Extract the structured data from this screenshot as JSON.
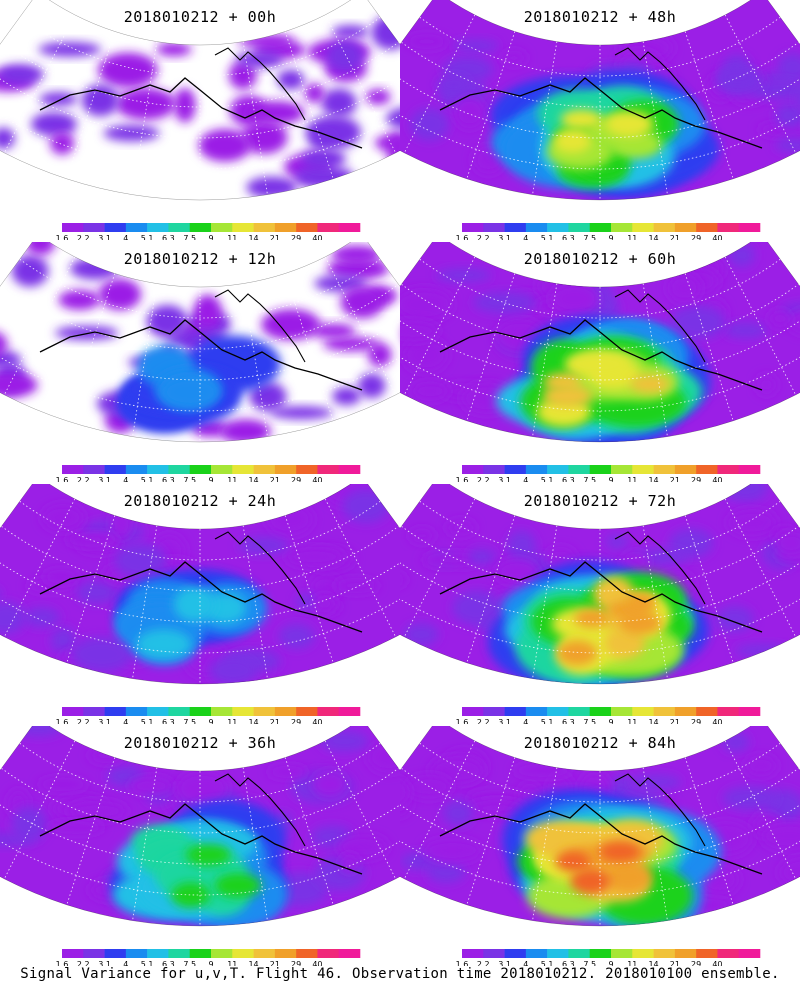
{
  "footer": "Signal Variance for u,v,T. Flight 46. Observation time 2018010212. 2018010100 ensemble.",
  "colorbar": {
    "colors": [
      "#9b1fe6",
      "#7a33e6",
      "#2f3df0",
      "#1a8cf0",
      "#22c0e6",
      "#1fd6a0",
      "#1ad21a",
      "#a6e636",
      "#e6e636",
      "#f0c23a",
      "#f0a02a",
      "#f06428",
      "#f0287a",
      "#f01a9a"
    ],
    "tick_labels": [
      "1.6",
      "2.2",
      "3.1",
      "4",
      "5.1",
      "6.3",
      "7.5",
      "9",
      "11",
      "14",
      "21",
      "29",
      "40"
    ]
  },
  "chart_data": [
    {
      "type": "heatmap",
      "title": "2018010212 + 00h",
      "forecast_hour": 0,
      "intensity": 0.15
    },
    {
      "type": "heatmap",
      "title": "2018010212 + 48h",
      "forecast_hour": 48,
      "intensity": 0.62
    },
    {
      "type": "heatmap",
      "title": "2018010212 + 12h",
      "forecast_hour": 12,
      "intensity": 0.25
    },
    {
      "type": "heatmap",
      "title": "2018010212 + 60h",
      "forecast_hour": 60,
      "intensity": 0.7
    },
    {
      "type": "heatmap",
      "title": "2018010212 + 24h",
      "forecast_hour": 24,
      "intensity": 0.38
    },
    {
      "type": "heatmap",
      "title": "2018010212 + 72h",
      "forecast_hour": 72,
      "intensity": 0.78
    },
    {
      "type": "heatmap",
      "title": "2018010212 + 36h",
      "forecast_hour": 36,
      "intensity": 0.5
    },
    {
      "type": "heatmap",
      "title": "2018010212 + 84h",
      "forecast_hour": 84,
      "intensity": 0.85
    }
  ]
}
